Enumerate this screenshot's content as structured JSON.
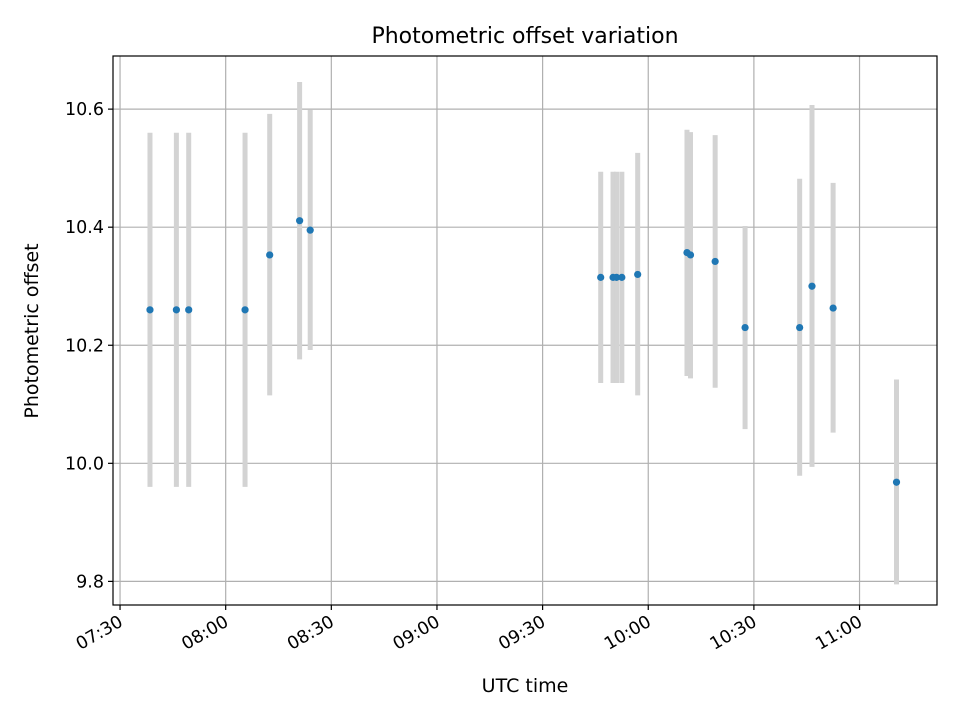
{
  "chart_data": {
    "type": "scatter",
    "title": "Photometric offset variation",
    "xlabel": "UTC time",
    "ylabel": "Photometric offset",
    "xlim": [
      "07:28",
      "11:22"
    ],
    "ylim": [
      9.76,
      10.69
    ],
    "x_ticks": [
      "07:30",
      "08:00",
      "08:30",
      "09:00",
      "09:30",
      "10:00",
      "10:30",
      "11:00"
    ],
    "y_ticks": [
      "9.8",
      "10.0",
      "10.2",
      "10.4",
      "10.6"
    ],
    "grid": true,
    "colors": {
      "point": "#1f77b4",
      "error_bar": "#d3d3d3",
      "grid": "#b0b0b0"
    },
    "points": [
      {
        "x": "07:38:30",
        "y": 10.26,
        "ylow": 9.96,
        "yhigh": 10.56
      },
      {
        "x": "07:46:00",
        "y": 10.26,
        "ylow": 9.96,
        "yhigh": 10.56
      },
      {
        "x": "07:49:30",
        "y": 10.26,
        "ylow": 9.96,
        "yhigh": 10.56
      },
      {
        "x": "08:05:30",
        "y": 10.26,
        "ylow": 9.96,
        "yhigh": 10.56
      },
      {
        "x": "08:12:30",
        "y": 10.353,
        "ylow": 10.115,
        "yhigh": 10.592
      },
      {
        "x": "08:21:00",
        "y": 10.411,
        "ylow": 10.176,
        "yhigh": 10.646
      },
      {
        "x": "08:24:00",
        "y": 10.395,
        "ylow": 10.192,
        "yhigh": 10.599
      },
      {
        "x": "09:46:30",
        "y": 10.315,
        "ylow": 10.136,
        "yhigh": 10.494
      },
      {
        "x": "09:50:00",
        "y": 10.315,
        "ylow": 10.136,
        "yhigh": 10.494
      },
      {
        "x": "09:51:00",
        "y": 10.315,
        "ylow": 10.136,
        "yhigh": 10.494
      },
      {
        "x": "09:52:30",
        "y": 10.315,
        "ylow": 10.136,
        "yhigh": 10.494
      },
      {
        "x": "09:57:00",
        "y": 10.32,
        "ylow": 10.115,
        "yhigh": 10.526
      },
      {
        "x": "10:11:00",
        "y": 10.357,
        "ylow": 10.148,
        "yhigh": 10.565
      },
      {
        "x": "10:12:00",
        "y": 10.353,
        "ylow": 10.144,
        "yhigh": 10.561
      },
      {
        "x": "10:19:00",
        "y": 10.342,
        "ylow": 10.128,
        "yhigh": 10.556
      },
      {
        "x": "10:27:30",
        "y": 10.23,
        "ylow": 10.058,
        "yhigh": 10.402
      },
      {
        "x": "10:43:00",
        "y": 10.23,
        "ylow": 9.979,
        "yhigh": 10.482
      },
      {
        "x": "10:46:30",
        "y": 10.3,
        "ylow": 9.994,
        "yhigh": 10.607
      },
      {
        "x": "10:52:30",
        "y": 10.263,
        "ylow": 10.052,
        "yhigh": 10.475
      },
      {
        "x": "11:10:30",
        "y": 9.968,
        "ylow": 9.795,
        "yhigh": 10.142
      }
    ]
  }
}
